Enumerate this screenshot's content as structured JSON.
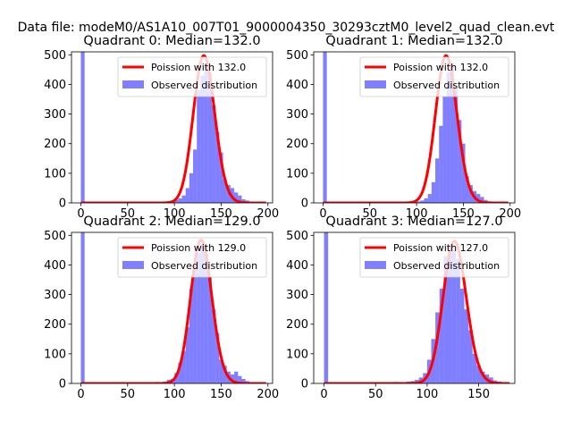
{
  "figure": {
    "suptitle": "Data file: modeM0/AS1A10_007T01_9000004350_30293cztM0_level2_quad_clean.evt"
  },
  "chart_data": [
    {
      "type": "bar",
      "title": "Quadrant 0: Median=132.0",
      "xlim": [
        -10,
        205
      ],
      "ylim": [
        0,
        510
      ],
      "xticks": [
        0,
        50,
        100,
        150,
        200
      ],
      "yticks": [
        0,
        100,
        200,
        300,
        400,
        500
      ],
      "bin_width": 4,
      "bins": [
        {
          "x": 0,
          "y": 510
        },
        {
          "x": 80,
          "y": 2
        },
        {
          "x": 84,
          "y": 2
        },
        {
          "x": 88,
          "y": 3
        },
        {
          "x": 92,
          "y": 4
        },
        {
          "x": 96,
          "y": 5
        },
        {
          "x": 100,
          "y": 10
        },
        {
          "x": 104,
          "y": 15
        },
        {
          "x": 108,
          "y": 25
        },
        {
          "x": 112,
          "y": 50
        },
        {
          "x": 116,
          "y": 100
        },
        {
          "x": 120,
          "y": 180
        },
        {
          "x": 124,
          "y": 380
        },
        {
          "x": 128,
          "y": 430
        },
        {
          "x": 132,
          "y": 470
        },
        {
          "x": 136,
          "y": 440
        },
        {
          "x": 140,
          "y": 330
        },
        {
          "x": 144,
          "y": 240
        },
        {
          "x": 148,
          "y": 170
        },
        {
          "x": 152,
          "y": 80
        },
        {
          "x": 156,
          "y": 60
        },
        {
          "x": 160,
          "y": 50
        },
        {
          "x": 164,
          "y": 35
        },
        {
          "x": 168,
          "y": 25
        },
        {
          "x": 172,
          "y": 12
        },
        {
          "x": 176,
          "y": 8
        },
        {
          "x": 180,
          "y": 4
        }
      ],
      "poisson_lambda": 132.0,
      "poisson_amplitude": 497,
      "poisson_range": [
        0,
        198
      ],
      "series": [
        {
          "name": "Poission with 132.0",
          "color": "#ff0000"
        },
        {
          "name": "Observed distribution",
          "color": "#0000ff"
        }
      ],
      "legend_position": "upper right"
    },
    {
      "type": "bar",
      "title": "Quadrant 1: Median=132.0",
      "xlim": [
        -10,
        205
      ],
      "ylim": [
        0,
        510
      ],
      "xticks": [
        0,
        50,
        100,
        150,
        200
      ],
      "yticks": [
        0,
        100,
        200,
        300,
        400,
        500
      ],
      "bin_width": 4,
      "bins": [
        {
          "x": 0,
          "y": 510
        },
        {
          "x": 96,
          "y": 3
        },
        {
          "x": 100,
          "y": 5
        },
        {
          "x": 104,
          "y": 8
        },
        {
          "x": 108,
          "y": 15
        },
        {
          "x": 112,
          "y": 30
        },
        {
          "x": 116,
          "y": 70
        },
        {
          "x": 120,
          "y": 150
        },
        {
          "x": 124,
          "y": 260
        },
        {
          "x": 128,
          "y": 360
        },
        {
          "x": 132,
          "y": 440
        },
        {
          "x": 136,
          "y": 470
        },
        {
          "x": 140,
          "y": 390
        },
        {
          "x": 144,
          "y": 280
        },
        {
          "x": 148,
          "y": 200
        },
        {
          "x": 152,
          "y": 90
        },
        {
          "x": 156,
          "y": 60
        },
        {
          "x": 160,
          "y": 40
        },
        {
          "x": 164,
          "y": 30
        },
        {
          "x": 168,
          "y": 20
        },
        {
          "x": 172,
          "y": 10
        },
        {
          "x": 176,
          "y": 5
        },
        {
          "x": 180,
          "y": 3
        }
      ],
      "poisson_lambda": 132.0,
      "poisson_amplitude": 497,
      "poisson_range": [
        0,
        198
      ],
      "series": [
        {
          "name": "Poission with 132.0",
          "color": "#ff0000"
        },
        {
          "name": "Observed distribution",
          "color": "#0000ff"
        }
      ],
      "legend_position": "upper right"
    },
    {
      "type": "bar",
      "title": "Quadrant 2: Median=129.0",
      "xlim": [
        -10,
        205
      ],
      "ylim": [
        0,
        510
      ],
      "xticks": [
        0,
        50,
        100,
        150,
        200
      ],
      "yticks": [
        0,
        100,
        200,
        300,
        400,
        500
      ],
      "bin_width": 4,
      "bins": [
        {
          "x": 0,
          "y": 510
        },
        {
          "x": 76,
          "y": 3
        },
        {
          "x": 80,
          "y": 5
        },
        {
          "x": 84,
          "y": 4
        },
        {
          "x": 88,
          "y": 6
        },
        {
          "x": 92,
          "y": 12
        },
        {
          "x": 96,
          "y": 15
        },
        {
          "x": 100,
          "y": 35
        },
        {
          "x": 104,
          "y": 70
        },
        {
          "x": 108,
          "y": 110
        },
        {
          "x": 112,
          "y": 190
        },
        {
          "x": 116,
          "y": 320
        },
        {
          "x": 120,
          "y": 390
        },
        {
          "x": 124,
          "y": 440
        },
        {
          "x": 128,
          "y": 470
        },
        {
          "x": 132,
          "y": 440
        },
        {
          "x": 136,
          "y": 360
        },
        {
          "x": 140,
          "y": 250
        },
        {
          "x": 144,
          "y": 170
        },
        {
          "x": 148,
          "y": 80
        },
        {
          "x": 152,
          "y": 60
        },
        {
          "x": 156,
          "y": 40
        },
        {
          "x": 160,
          "y": 30
        },
        {
          "x": 164,
          "y": 40
        },
        {
          "x": 168,
          "y": 25
        },
        {
          "x": 172,
          "y": 15
        },
        {
          "x": 176,
          "y": 8
        }
      ],
      "poisson_lambda": 129.0,
      "poisson_amplitude": 484,
      "poisson_range": [
        0,
        198
      ],
      "series": [
        {
          "name": "Poission with 129.0",
          "color": "#ff0000"
        },
        {
          "name": "Observed distribution",
          "color": "#0000ff"
        }
      ],
      "legend_position": "upper right"
    },
    {
      "type": "bar",
      "title": "Quadrant 3: Median=127.0",
      "xlim": [
        -10,
        185
      ],
      "ylim": [
        0,
        510
      ],
      "xticks": [
        0,
        50,
        100,
        150
      ],
      "yticks": [
        0,
        100,
        200,
        300,
        400,
        500
      ],
      "bin_width": 4,
      "bins": [
        {
          "x": 0,
          "y": 510
        },
        {
          "x": 68,
          "y": 5
        },
        {
          "x": 72,
          "y": 3
        },
        {
          "x": 76,
          "y": 4
        },
        {
          "x": 80,
          "y": 6
        },
        {
          "x": 84,
          "y": 8
        },
        {
          "x": 88,
          "y": 12
        },
        {
          "x": 92,
          "y": 20
        },
        {
          "x": 96,
          "y": 35
        },
        {
          "x": 100,
          "y": 80
        },
        {
          "x": 104,
          "y": 150
        },
        {
          "x": 108,
          "y": 240
        },
        {
          "x": 112,
          "y": 320
        },
        {
          "x": 116,
          "y": 430
        },
        {
          "x": 120,
          "y": 470
        },
        {
          "x": 124,
          "y": 450
        },
        {
          "x": 128,
          "y": 420
        },
        {
          "x": 132,
          "y": 320
        },
        {
          "x": 136,
          "y": 250
        },
        {
          "x": 140,
          "y": 180
        },
        {
          "x": 144,
          "y": 100
        },
        {
          "x": 148,
          "y": 60
        },
        {
          "x": 152,
          "y": 40
        },
        {
          "x": 156,
          "y": 30
        },
        {
          "x": 160,
          "y": 20
        },
        {
          "x": 164,
          "y": 10
        },
        {
          "x": 168,
          "y": 6
        }
      ],
      "poisson_lambda": 127.0,
      "poisson_amplitude": 480,
      "poisson_range": [
        0,
        180
      ],
      "series": [
        {
          "name": "Poission with 127.0",
          "color": "#ff0000"
        },
        {
          "name": "Observed distribution",
          "color": "#0000ff"
        }
      ],
      "legend_position": "upper right"
    }
  ]
}
